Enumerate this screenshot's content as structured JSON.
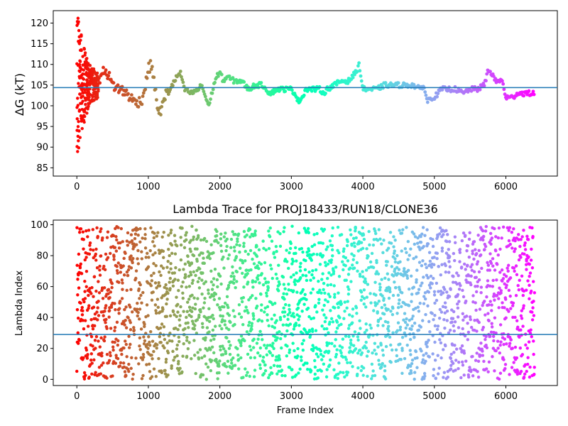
{
  "chart_data": [
    {
      "type": "scatter",
      "title": "",
      "xlabel": "",
      "ylabel": "ΔG (kT)",
      "xlim": [
        -330,
        6720
      ],
      "ylim": [
        83,
        123
      ],
      "xticks": [
        0,
        1000,
        2000,
        3000,
        4000,
        5000,
        6000
      ],
      "yticks": [
        85,
        90,
        95,
        100,
        105,
        110,
        115,
        120
      ],
      "hline": 104.4,
      "hline_color": "#1f77b4",
      "colormap": "rainbow",
      "x_range": [
        0,
        6400
      ],
      "trace": [
        [
          0,
          90
        ],
        [
          30,
          105
        ],
        [
          80,
          100
        ],
        [
          150,
          104
        ],
        [
          200,
          107
        ],
        [
          300,
          106
        ],
        [
          400,
          109
        ],
        [
          500,
          105
        ],
        [
          600,
          104
        ],
        [
          700,
          103
        ],
        [
          800,
          101
        ],
        [
          900,
          101
        ],
        [
          950,
          104
        ],
        [
          1000,
          109
        ],
        [
          1050,
          110
        ],
        [
          1100,
          103
        ],
        [
          1150,
          98
        ],
        [
          1200,
          100
        ],
        [
          1250,
          103
        ],
        [
          1300,
          104
        ],
        [
          1400,
          107
        ],
        [
          1450,
          108
        ],
        [
          1500,
          104
        ],
        [
          1600,
          103
        ],
        [
          1700,
          104
        ],
        [
          1750,
          105
        ],
        [
          1800,
          102
        ],
        [
          1850,
          100
        ],
        [
          1900,
          104
        ],
        [
          1950,
          107
        ],
        [
          2000,
          108
        ],
        [
          2050,
          106
        ],
        [
          2100,
          107
        ],
        [
          2200,
          106
        ],
        [
          2300,
          106
        ],
        [
          2400,
          104
        ],
        [
          2500,
          105
        ],
        [
          2600,
          105
        ],
        [
          2700,
          103
        ],
        [
          2800,
          104
        ],
        [
          2900,
          104
        ],
        [
          3000,
          104
        ],
        [
          3050,
          103
        ],
        [
          3100,
          101
        ],
        [
          3150,
          102
        ],
        [
          3200,
          104
        ],
        [
          3300,
          104
        ],
        [
          3400,
          104
        ],
        [
          3450,
          103
        ],
        [
          3500,
          104
        ],
        [
          3600,
          105
        ],
        [
          3700,
          106
        ],
        [
          3800,
          106
        ],
        [
          3900,
          108
        ],
        [
          3950,
          110
        ],
        [
          4000,
          104
        ],
        [
          4100,
          104
        ],
        [
          4200,
          104
        ],
        [
          4300,
          105
        ],
        [
          4400,
          105
        ],
        [
          4500,
          105
        ],
        [
          4600,
          105
        ],
        [
          4700,
          105
        ],
        [
          4800,
          104
        ],
        [
          4850,
          105
        ],
        [
          4900,
          101
        ],
        [
          4950,
          102
        ],
        [
          5000,
          102
        ],
        [
          5100,
          104
        ],
        [
          5200,
          104
        ],
        [
          5300,
          104
        ],
        [
          5400,
          103
        ],
        [
          5500,
          104
        ],
        [
          5600,
          104
        ],
        [
          5700,
          105
        ],
        [
          5750,
          108.5
        ],
        [
          5800,
          108
        ],
        [
          5850,
          106
        ],
        [
          5950,
          106
        ],
        [
          6000,
          102
        ],
        [
          6100,
          102
        ],
        [
          6150,
          103
        ],
        [
          6250,
          103
        ],
        [
          6400,
          103
        ]
      ]
    },
    {
      "type": "scatter",
      "title": "Lambda Trace for PROJ18433/RUN18/CLONE36",
      "xlabel": "Frame Index",
      "ylabel": "Lambda Index",
      "xlim": [
        -330,
        6720
      ],
      "ylim": [
        -4,
        103
      ],
      "xticks": [
        0,
        1000,
        2000,
        3000,
        4000,
        5000,
        6000
      ],
      "yticks": [
        0,
        20,
        40,
        60,
        80,
        100
      ],
      "hline": 29,
      "hline_color": "#1f77b4",
      "colormap": "rainbow",
      "x_range": [
        0,
        6400
      ],
      "lambda_range": [
        0,
        99
      ]
    }
  ]
}
